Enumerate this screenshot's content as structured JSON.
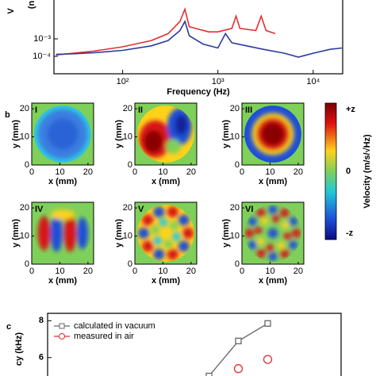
{
  "chart_data": [
    {
      "type": "line",
      "ylabel": "V",
      "yunit": "(n",
      "xlabel": "Frequency (Hz)",
      "xscale": "log",
      "yscale": "log",
      "xlim": [
        19,
        20400
      ],
      "ylim": [
        1e-05,
        0.1
      ],
      "xticks": [
        {
          "value": 100,
          "label": "10²"
        },
        {
          "value": 1000,
          "label": "10³"
        },
        {
          "value": 10000,
          "label": "10⁴"
        }
      ],
      "yticks": [
        {
          "value": 0.001,
          "label": "10⁻³"
        },
        {
          "value": 0.0001,
          "label": "10⁻⁴"
        }
      ],
      "series": [
        {
          "color": "#e0302f",
          "x": [
            20,
            50,
            100,
            200,
            300,
            400,
            450,
            500,
            800,
            1000,
            1400,
            1550,
            1700,
            2500,
            2850,
            3200,
            4000
          ],
          "values": [
            0.00012,
            0.0002,
            0.00035,
            0.0008,
            0.002,
            0.01,
            0.05,
            0.005,
            0.0025,
            0.0025,
            0.004,
            0.02,
            0.004,
            0.003,
            0.02,
            0.003,
            0.002
          ]
        },
        {
          "color": "#2b3a9e",
          "x": [
            20,
            30,
            50,
            100,
            200,
            300,
            400,
            450,
            500,
            700,
            1000,
            1200,
            1400,
            2000,
            3000,
            5000,
            7000,
            10000,
            15000,
            20000
          ],
          "values": [
            0.00013,
            0.00014,
            0.00016,
            0.00022,
            0.0004,
            0.0008,
            0.003,
            0.01,
            0.0015,
            0.0005,
            0.0003,
            0.002,
            0.0006,
            0.0004,
            0.00025,
            0.00015,
            9e-05,
            0.00015,
            0.00025,
            0.0003
          ]
        }
      ]
    },
    {
      "type": "heatmap",
      "panel_label": "b",
      "colorbar": {
        "ticks": [
          "+z",
          "0",
          "-z"
        ],
        "label": "Velocity (m/s/√Hz)"
      },
      "maps": [
        {
          "label": "I",
          "xlabel": "x (mm)",
          "ylabel": "y (mm)",
          "xlim": [
            0,
            22
          ],
          "ylim": [
            0,
            22
          ],
          "xticks": [
            0,
            10,
            20
          ],
          "yticks": [
            0,
            10,
            20
          ]
        },
        {
          "label": "II",
          "xlabel": "x (mm)",
          "ylabel": "y (mm)",
          "xlim": [
            0,
            22
          ],
          "ylim": [
            0,
            22
          ],
          "xticks": [
            0,
            10,
            20
          ],
          "yticks": [
            0,
            10,
            20
          ]
        },
        {
          "label": "III",
          "xlabel": "x (mm)",
          "ylabel": "y (mm)",
          "xlim": [
            0,
            22
          ],
          "ylim": [
            0,
            22
          ],
          "xticks": [
            0,
            10,
            20
          ],
          "yticks": [
            0,
            10,
            20
          ]
        },
        {
          "label": "IV",
          "xlabel": "x (mm)",
          "ylabel": "y (mm)",
          "xlim": [
            0,
            22
          ],
          "ylim": [
            0,
            22
          ],
          "xticks": [
            0,
            10,
            20
          ],
          "yticks": [
            0,
            10,
            20
          ]
        },
        {
          "label": "V",
          "xlabel": "x (mm)",
          "ylabel": "y (mm)",
          "xlim": [
            0,
            22
          ],
          "ylim": [
            0,
            22
          ],
          "xticks": [
            0,
            10,
            20
          ],
          "yticks": [
            0,
            10,
            20
          ]
        },
        {
          "label": "VI",
          "xlabel": "x (mm)",
          "ylabel": "y (mm)",
          "xlim": [
            0,
            22
          ],
          "ylim": [
            0,
            22
          ],
          "xticks": [
            0,
            10,
            20
          ],
          "yticks": [
            0,
            10,
            20
          ]
        }
      ]
    },
    {
      "type": "line",
      "panel_label": "c",
      "ylabel": "cy (kHz)",
      "ylim": [
        5,
        8.4
      ],
      "yticks": [
        6,
        8
      ],
      "categories": [
        null,
        null,
        null,
        null,
        null,
        null,
        null,
        null,
        null,
        null
      ],
      "series": [
        {
          "name": "calculated in vacuum",
          "color": "#666666",
          "marker": "square",
          "values": [
            null,
            null,
            null,
            null,
            null,
            5.0,
            6.9,
            7.85,
            null,
            null
          ]
        },
        {
          "name": "measured in air",
          "color": "#e0302f",
          "marker": "circle",
          "values": [
            null,
            null,
            null,
            null,
            null,
            null,
            5.4,
            5.9,
            null,
            null
          ]
        }
      ]
    }
  ]
}
